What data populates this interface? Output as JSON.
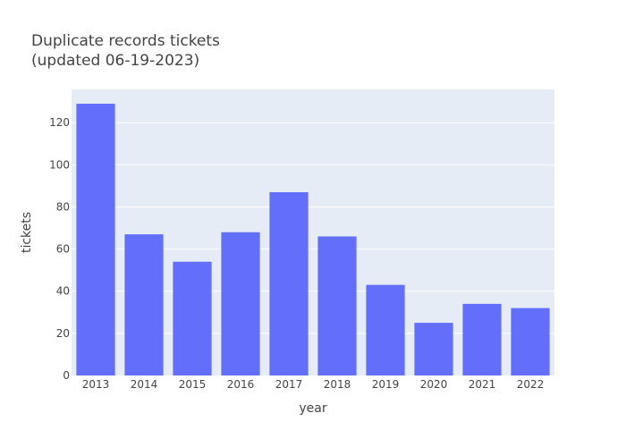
{
  "chart_data": {
    "type": "bar",
    "title_line1": "Duplicate records tickets",
    "title_line2": "(updated 06-19-2023)",
    "xlabel": "year",
    "ylabel": "tickets",
    "categories": [
      "2013",
      "2014",
      "2015",
      "2016",
      "2017",
      "2018",
      "2019",
      "2020",
      "2021",
      "2022"
    ],
    "values": [
      129,
      67,
      54,
      68,
      87,
      66,
      43,
      25,
      34,
      32
    ],
    "ylim": [
      0,
      135.8
    ],
    "yticks": [
      0,
      20,
      40,
      60,
      80,
      100,
      120
    ],
    "grid": true,
    "bar_color": "#636efa",
    "plot_background": "#e5ecf6",
    "gridline_color": "#ffffff"
  }
}
